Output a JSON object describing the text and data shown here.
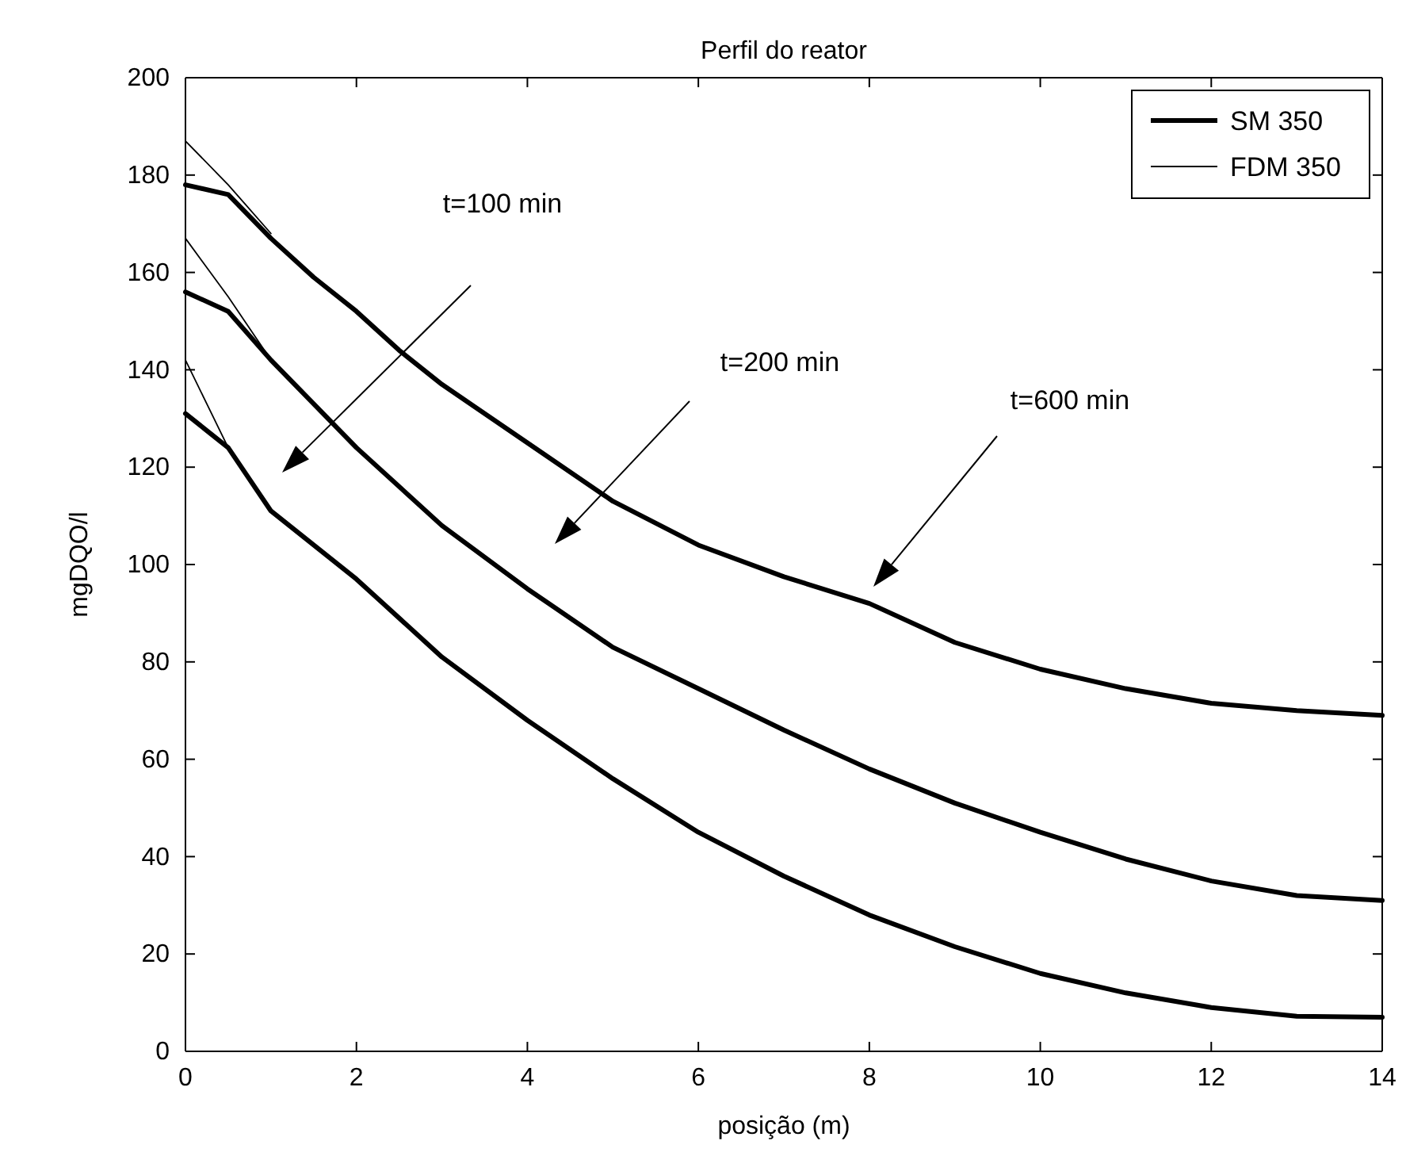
{
  "chart_data": {
    "type": "line",
    "title": "Perfil do reator",
    "xlabel": "posição (m)",
    "ylabel": "mgDQO/l",
    "xlim": [
      0,
      14
    ],
    "xticks": [
      0,
      2,
      4,
      6,
      8,
      10,
      12,
      14
    ],
    "ylim": [
      0,
      200
    ],
    "yticks": [
      0,
      20,
      40,
      60,
      80,
      100,
      120,
      140,
      160,
      180,
      200
    ],
    "grid": false,
    "legend": "top right",
    "line_style": "solid",
    "marker": "none",
    "series": [
      {
        "name": "SM 350",
        "color": "#000000",
        "x": [
          0,
          0.5,
          1,
          1.5,
          2,
          2.5,
          3,
          4,
          5,
          6,
          7,
          8,
          9,
          10,
          11,
          12,
          13,
          14
        ],
        "values": [
          178,
          176,
          167,
          159,
          152,
          144,
          137,
          125,
          113,
          104,
          97.5,
          92,
          84,
          78.5,
          74.5,
          71.5,
          70,
          69
        ]
      },
      {
        "name": "FDM 350",
        "color": "#000000",
        "x": [
          0,
          0.5,
          1
        ],
        "values": [
          187,
          178,
          168
        ]
      },
      {
        "color": "#000000",
        "x": [
          0,
          0.5,
          1,
          2,
          3,
          4,
          5,
          6,
          7,
          8,
          9,
          10,
          11,
          12,
          13,
          14
        ],
        "values": [
          156,
          152,
          142,
          124,
          108,
          95,
          83,
          74.5,
          66,
          58,
          51,
          45,
          39.5,
          35,
          32,
          31
        ]
      },
      {
        "color": "#000000",
        "x": [
          0,
          0.5,
          1
        ],
        "values": [
          167,
          155,
          142
        ]
      },
      {
        "color": "#000000",
        "x": [
          0,
          0.5,
          1,
          2,
          3,
          4,
          5,
          6,
          7,
          8,
          9,
          10,
          11,
          12,
          13,
          14
        ],
        "values": [
          131,
          124,
          111,
          97,
          81,
          68,
          56,
          45,
          36,
          28,
          21.5,
          16,
          12,
          9,
          7.2,
          7
        ]
      },
      {
        "color": "#000000",
        "x": [
          0,
          0.5
        ],
        "values": [
          142,
          124
        ]
      }
    ],
    "annotations": [
      "t=100 min",
      "t=200 min",
      "t=600 min"
    ]
  }
}
